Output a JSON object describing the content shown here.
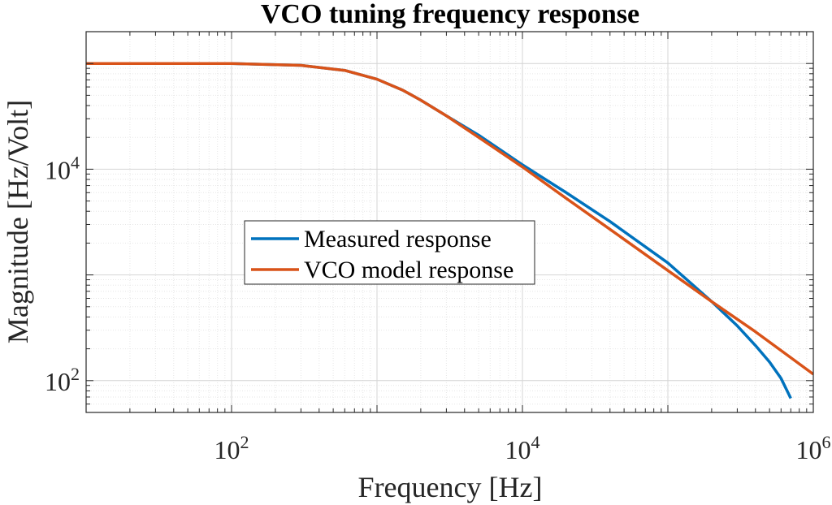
{
  "chart_data": {
    "type": "line",
    "title": "VCO tuning frequency response",
    "xlabel": "Frequency [Hz]",
    "ylabel": "Magnitude [Hz/Volt]",
    "xscale": "log",
    "yscale": "log",
    "xlim": [
      10,
      1000000
    ],
    "ylim": [
      50,
      200000
    ],
    "grid": true,
    "legend_position": "center-left",
    "x_ticks": [
      {
        "value": 100,
        "base": "10",
        "exp": "2"
      },
      {
        "value": 10000,
        "base": "10",
        "exp": "4"
      },
      {
        "value": 1000000,
        "base": "10",
        "exp": "6"
      }
    ],
    "y_ticks": [
      {
        "value": 100,
        "base": "10",
        "exp": "2"
      },
      {
        "value": 10000,
        "base": "10",
        "exp": "4"
      }
    ],
    "series": [
      {
        "name": "Measured response",
        "color": "#0072BD",
        "x": [
          10,
          30,
          100,
          300,
          600,
          1000,
          1500,
          2000,
          3000,
          5000,
          10000,
          20000,
          40000,
          100000,
          200000,
          300000,
          400000,
          500000,
          600000,
          700000
        ],
        "y": [
          100000,
          100000,
          100000,
          96000,
          86000,
          71000,
          56000,
          45000,
          32000,
          21000,
          11000,
          6000,
          3200,
          1300,
          560,
          330,
          215,
          150,
          105,
          68
        ]
      },
      {
        "name": "VCO model response",
        "color": "#D95319",
        "x": [
          10,
          30,
          100,
          300,
          600,
          1000,
          1500,
          2000,
          3000,
          5000,
          10000,
          20000,
          40000,
          100000,
          200000,
          400000,
          700000,
          1000000
        ],
        "y": [
          100000,
          100000,
          100000,
          96000,
          86000,
          71000,
          56000,
          45000,
          32000,
          20000,
          10500,
          5300,
          2700,
          1100,
          560,
          290,
          165,
          115
        ]
      }
    ]
  }
}
